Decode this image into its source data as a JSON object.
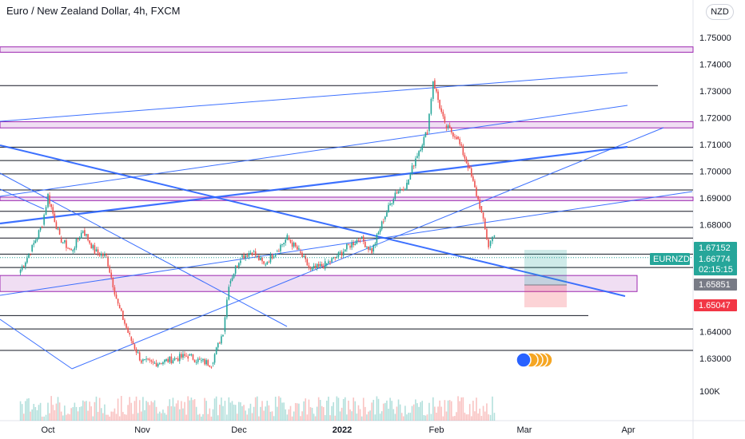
{
  "header": {
    "title": "Euro / New Zealand Dollar, 4h, FXCM",
    "currency_button": "NZD"
  },
  "chart_data": {
    "type": "candlestick",
    "symbol": "EURNZD",
    "timeframe": "4h",
    "source": "FXCM",
    "y_axis": {
      "ticks": [
        "1.75000",
        "1.74000",
        "1.73000",
        "1.72000",
        "1.71000",
        "1.70000",
        "1.69000",
        "1.68000",
        "1.64000",
        "1.63000"
      ],
      "range": [
        1.622,
        1.762
      ]
    },
    "x_axis": {
      "ticks": [
        "Oct",
        "Nov",
        "Dec",
        "2022",
        "Feb",
        "Mar",
        "Apr"
      ]
    },
    "volume_axis_label": "100K",
    "price_tags": [
      {
        "text": "1.67152",
        "color": "#26a69a"
      },
      {
        "text": "1.66774",
        "color": "#26a69a",
        "countdown": "02:15:15",
        "label": "EURNZD"
      },
      {
        "text": "1.65851",
        "color": "#787b86"
      },
      {
        "text": "1.65047",
        "color": "#f23645"
      }
    ],
    "price_path": [
      [
        "2021-09-21",
        1.662
      ],
      [
        "2021-09-25",
        1.67
      ],
      [
        "2021-09-29",
        1.68
      ],
      [
        "2021-10-01",
        1.691
      ],
      [
        "2021-10-05",
        1.675
      ],
      [
        "2021-10-09",
        1.67
      ],
      [
        "2021-10-13",
        1.678
      ],
      [
        "2021-10-17",
        1.67
      ],
      [
        "2021-10-21",
        1.668
      ],
      [
        "2021-10-25",
        1.65
      ],
      [
        "2021-10-29",
        1.638
      ],
      [
        "2021-11-02",
        1.629
      ],
      [
        "2021-11-06",
        1.628
      ],
      [
        "2021-11-10",
        1.629
      ],
      [
        "2021-11-14",
        1.63
      ],
      [
        "2021-11-18",
        1.631
      ],
      [
        "2021-11-22",
        1.629
      ],
      [
        "2021-11-26",
        1.628
      ],
      [
        "2021-11-30",
        1.64
      ],
      [
        "2021-12-02",
        1.658
      ],
      [
        "2021-12-06",
        1.668
      ],
      [
        "2021-12-10",
        1.67
      ],
      [
        "2021-12-14",
        1.665
      ],
      [
        "2021-12-18",
        1.67
      ],
      [
        "2021-12-22",
        1.675
      ],
      [
        "2021-12-26",
        1.67
      ],
      [
        "2021-12-30",
        1.663
      ],
      [
        "2022-01-04",
        1.665
      ],
      [
        "2022-01-08",
        1.668
      ],
      [
        "2022-01-12",
        1.672
      ],
      [
        "2022-01-16",
        1.675
      ],
      [
        "2022-01-20",
        1.67
      ],
      [
        "2022-01-24",
        1.682
      ],
      [
        "2022-01-28",
        1.692
      ],
      [
        "2022-02-01",
        1.695
      ],
      [
        "2022-02-04",
        1.705
      ],
      [
        "2022-02-08",
        1.715
      ],
      [
        "2022-02-10",
        1.734
      ],
      [
        "2022-02-14",
        1.717
      ],
      [
        "2022-02-18",
        1.713
      ],
      [
        "2022-02-22",
        1.702
      ],
      [
        "2022-02-26",
        1.687
      ],
      [
        "2022-03-01",
        1.672
      ],
      [
        "2022-03-03",
        1.677
      ]
    ]
  }
}
